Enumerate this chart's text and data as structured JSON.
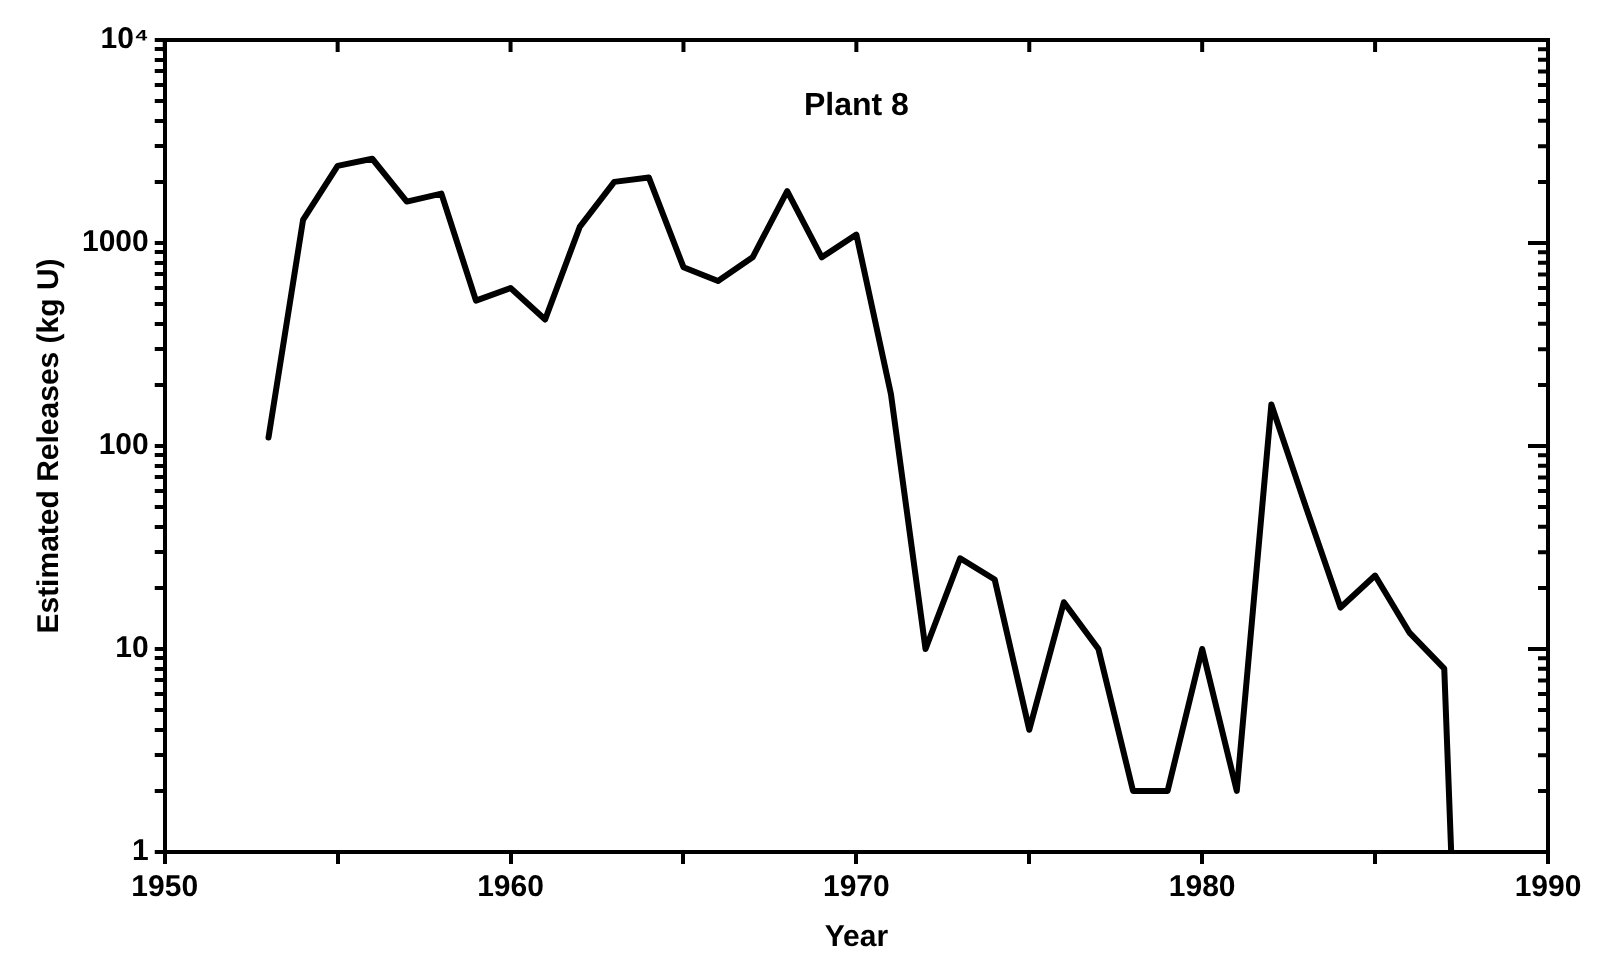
{
  "chart_data": {
    "type": "line",
    "title": "Plant 8",
    "xlabel": "Year",
    "ylabel": "Estimated Releases (kg U)",
    "x": [
      1953,
      1954,
      1955,
      1956,
      1957,
      1958,
      1959,
      1960,
      1961,
      1962,
      1963,
      1964,
      1965,
      1966,
      1967,
      1968,
      1969,
      1970,
      1971,
      1972,
      1973,
      1974,
      1975,
      1976,
      1977,
      1978,
      1979,
      1980,
      1981,
      1982,
      1983,
      1984,
      1985,
      1986,
      1987,
      1987.2
    ],
    "series": [
      {
        "color": "#000000",
        "values": [
          110,
          1300,
          2400,
          2600,
          1600,
          1750,
          520,
          600,
          420,
          1200,
          2000,
          2100,
          760,
          650,
          850,
          1800,
          850,
          1100,
          180,
          10,
          28,
          22,
          4,
          17,
          10,
          2,
          2,
          10,
          2,
          160,
          50,
          16,
          23,
          12,
          8,
          1
        ]
      }
    ],
    "xlim": [
      1950,
      1990
    ],
    "xticks": [
      1950,
      {
        "value": 1955,
        "label": null
      },
      1960,
      {
        "value": 1965,
        "label": null
      },
      1970,
      {
        "value": 1975,
        "label": null
      },
      1980,
      {
        "value": 1985,
        "label": null
      },
      1990
    ],
    "ylim": [
      1,
      10000
    ],
    "log": "y",
    "yticks": [
      1,
      {
        "value": 2,
        "label": null
      },
      {
        "value": 3,
        "label": null
      },
      {
        "value": 4,
        "label": null
      },
      {
        "value": 5,
        "label": null
      },
      {
        "value": 6,
        "label": null
      },
      {
        "value": 7,
        "label": null
      },
      {
        "value": 8,
        "label": null
      },
      {
        "value": 9,
        "label": null
      },
      10,
      {
        "value": 20,
        "label": null
      },
      {
        "value": 30,
        "label": null
      },
      {
        "value": 40,
        "label": null
      },
      {
        "value": 50,
        "label": null
      },
      {
        "value": 60,
        "label": null
      },
      {
        "value": 70,
        "label": null
      },
      {
        "value": 80,
        "label": null
      },
      {
        "value": 90,
        "label": null
      },
      100,
      {
        "value": 200,
        "label": null
      },
      {
        "value": 300,
        "label": null
      },
      {
        "value": 400,
        "label": null
      },
      {
        "value": 500,
        "label": null
      },
      {
        "value": 600,
        "label": null
      },
      {
        "value": 700,
        "label": null
      },
      {
        "value": 800,
        "label": null
      },
      {
        "value": 900,
        "label": null
      },
      1000,
      {
        "value": 2000,
        "label": null
      },
      {
        "value": 3000,
        "label": null
      },
      {
        "value": 4000,
        "label": null
      },
      {
        "value": 5000,
        "label": null
      },
      {
        "value": 6000,
        "label": null
      },
      {
        "value": 7000,
        "label": null
      },
      {
        "value": 8000,
        "label": null
      },
      {
        "value": 9000,
        "label": null
      },
      {
        "value": 10000,
        "label": "10⁴"
      }
    ],
    "grid": false,
    "legend": false,
    "marker": "none",
    "line_style": "solid"
  }
}
